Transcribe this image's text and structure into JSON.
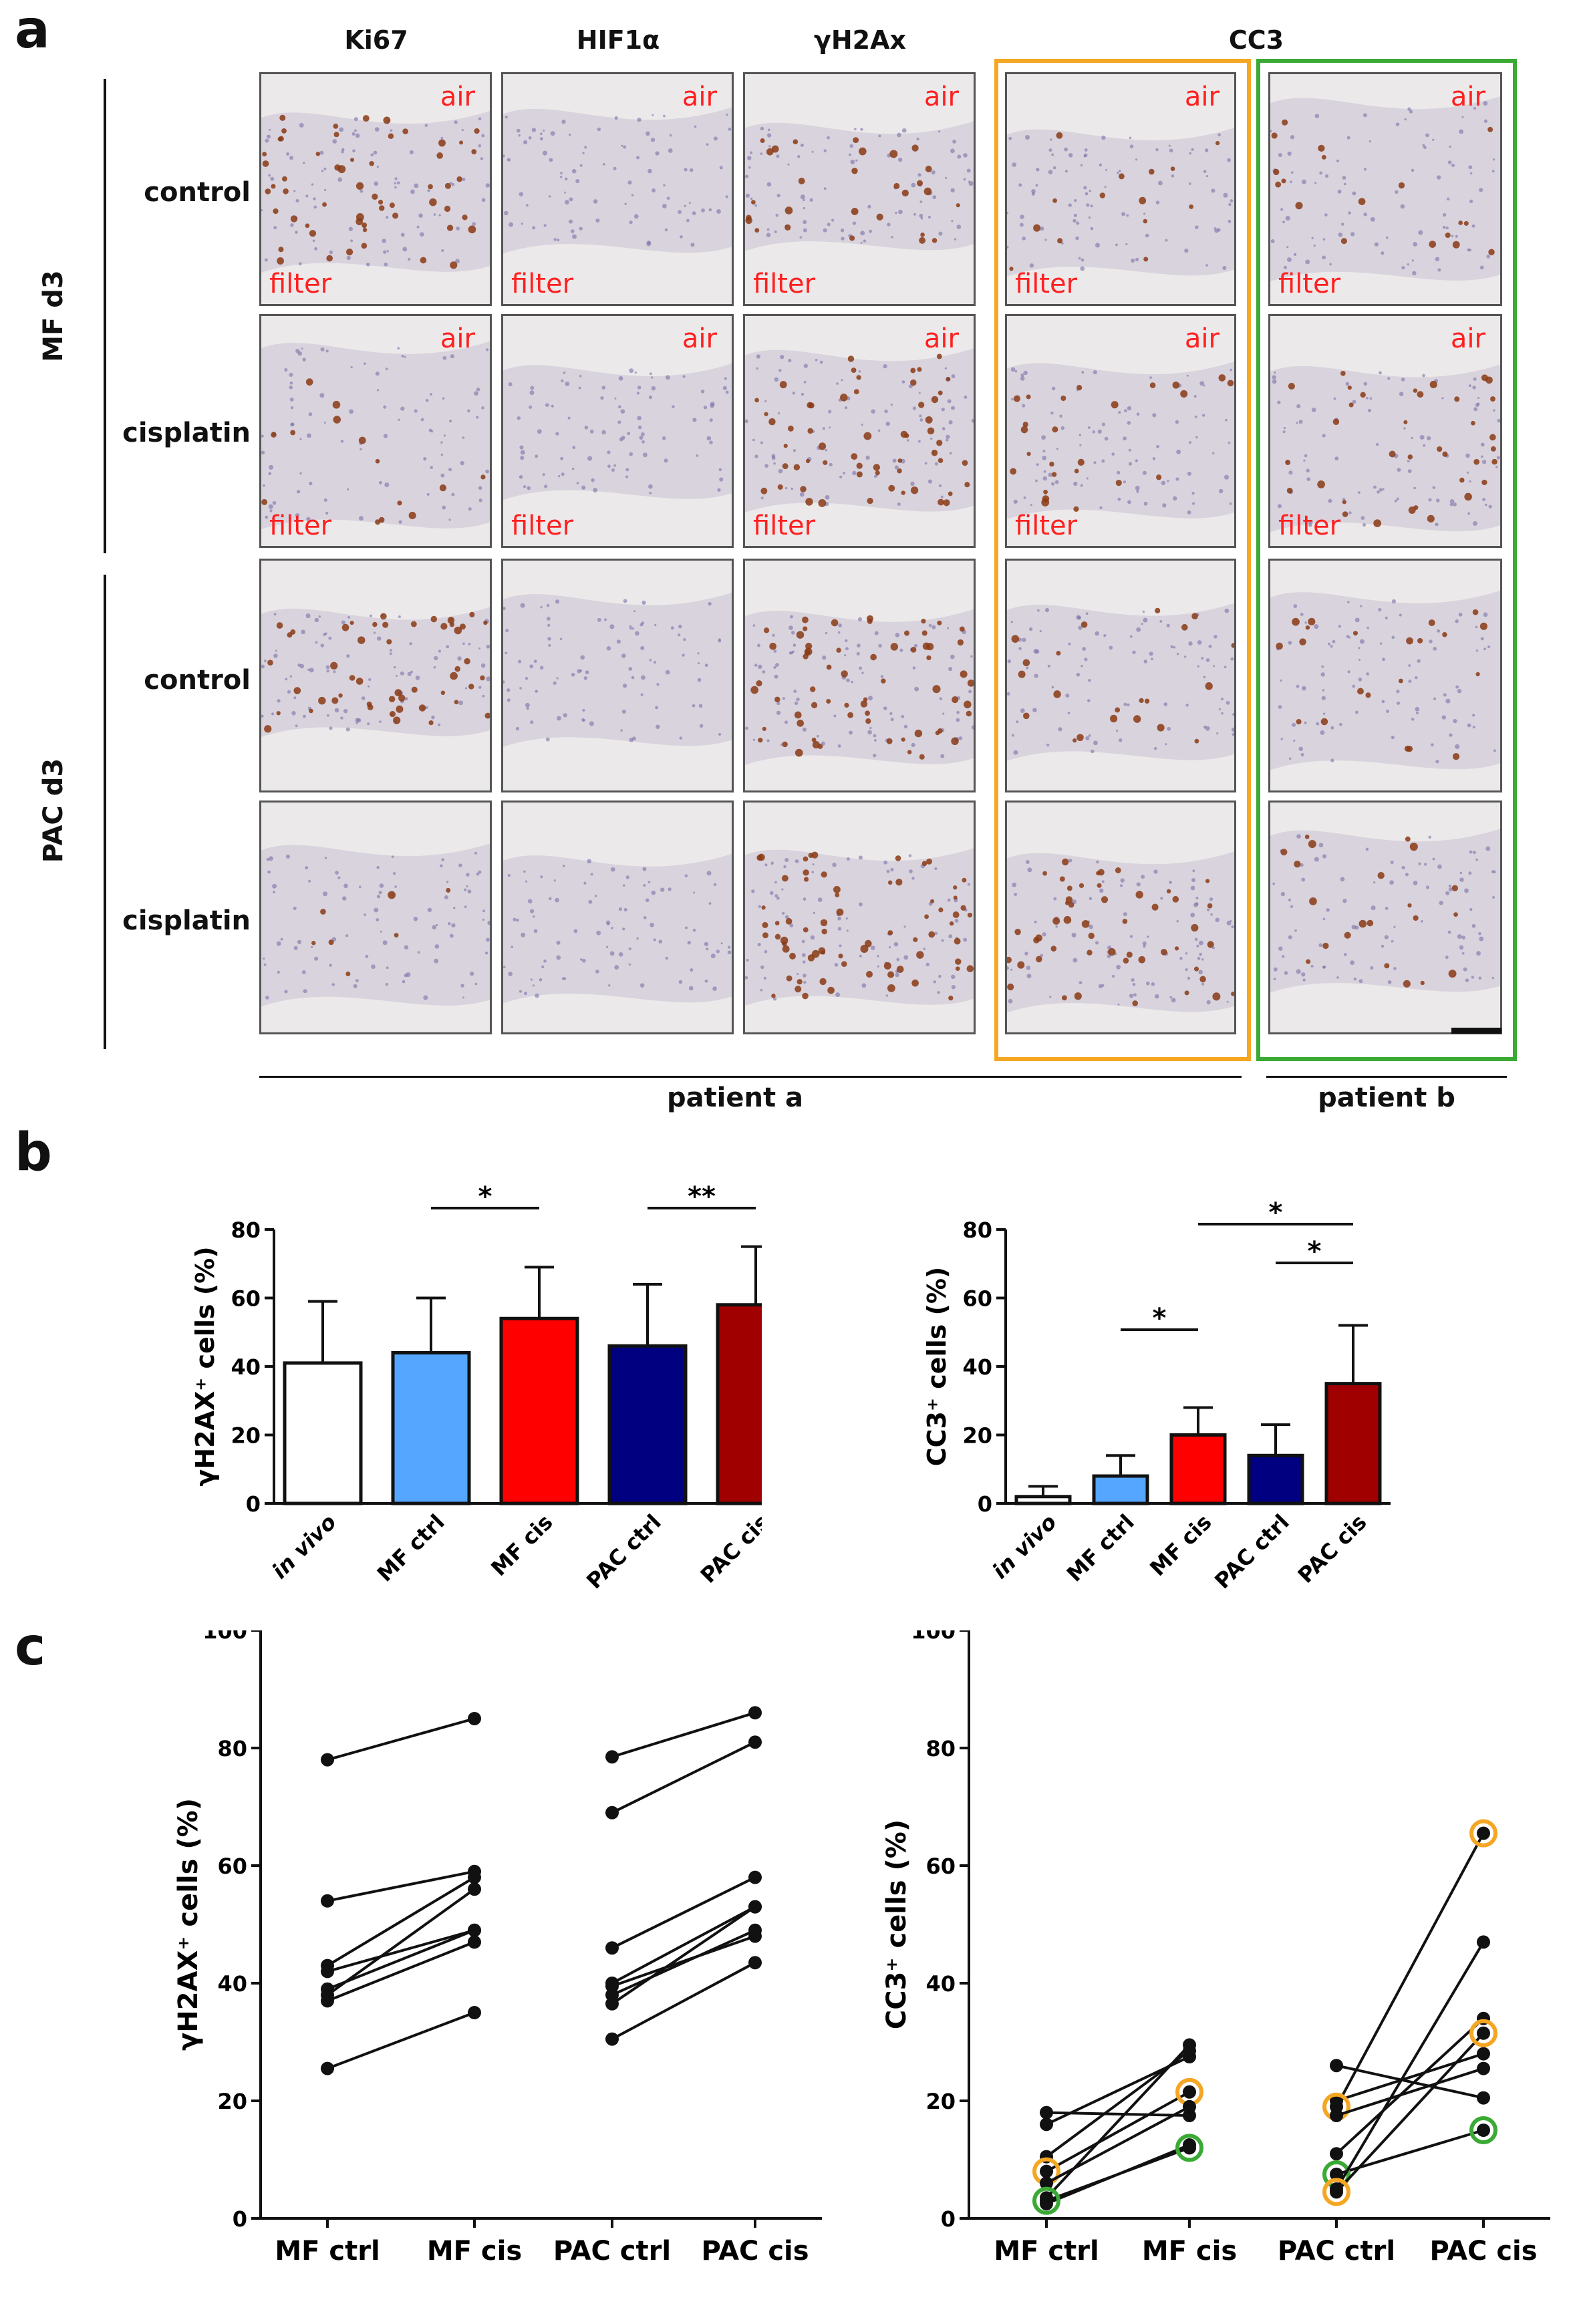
{
  "panel_labels": {
    "a": "a",
    "b": "b",
    "c": "c"
  },
  "panel_a": {
    "columns": [
      "Ki67",
      "HIF1α",
      "γH2Ax",
      "CC3"
    ],
    "row_groups": [
      "MF d3",
      "PAC d3"
    ],
    "rows": [
      "control",
      "cisplatin",
      "control",
      "cisplatin"
    ],
    "patients": [
      "patient a",
      "patient b"
    ],
    "tile_labels": {
      "air": "air",
      "filter": "filter"
    },
    "colors": {
      "orange_box": "#f5a623",
      "green_box": "#3aaa35",
      "stain": "#8a3a14",
      "nuclei": "#7a72a8"
    }
  },
  "chart_data": [
    {
      "type": "bar",
      "panel": "b-left",
      "categories": [
        "in vivo",
        "MF ctrl",
        "MF cis",
        "PAC ctrl",
        "PAC cis"
      ],
      "values": [
        41,
        44,
        54,
        46,
        58
      ],
      "errors": [
        18,
        16,
        15,
        18,
        17
      ],
      "colors": [
        "#ffffff",
        "#55a6ff",
        "#ff0000",
        "#000080",
        "#a00000"
      ],
      "ylabel": "γH2AX⁺ cells (%)",
      "ylim": [
        0,
        80
      ],
      "yticks": [
        0,
        20,
        40,
        60,
        80
      ],
      "significance": [
        {
          "from": "MF ctrl",
          "to": "MF cis",
          "label": "*"
        },
        {
          "from": "PAC ctrl",
          "to": "PAC cis",
          "label": "**"
        }
      ]
    },
    {
      "type": "bar",
      "panel": "b-right",
      "categories": [
        "in vivo",
        "MF ctrl",
        "MF cis",
        "PAC ctrl",
        "PAC cis"
      ],
      "values": [
        2,
        8,
        20,
        14,
        35
      ],
      "errors": [
        3,
        6,
        8,
        9,
        17
      ],
      "colors": [
        "#ffffff",
        "#55a6ff",
        "#ff0000",
        "#000080",
        "#a00000"
      ],
      "ylabel": "CC3⁺ cells (%)",
      "ylim": [
        0,
        80
      ],
      "yticks": [
        0,
        20,
        40,
        60,
        80
      ],
      "significance": [
        {
          "from": "MF ctrl",
          "to": "MF cis",
          "label": "*"
        },
        {
          "from": "PAC ctrl",
          "to": "PAC cis",
          "label": "*"
        },
        {
          "from": "MF cis",
          "to": "PAC cis",
          "label": "*"
        }
      ]
    },
    {
      "type": "scatter",
      "panel": "c-left",
      "categories": [
        "MF ctrl",
        "MF cis",
        "PAC ctrl",
        "PAC cis"
      ],
      "ylabel": "γH2AX⁺ cells (%)",
      "ylim": [
        0,
        100
      ],
      "yticks": [
        0,
        20,
        40,
        60,
        80,
        100
      ],
      "pairs_mf": [
        [
          78,
          85
        ],
        [
          54,
          59
        ],
        [
          43,
          58
        ],
        [
          42,
          49
        ],
        [
          39,
          49
        ],
        [
          38,
          56
        ],
        [
          37,
          47
        ],
        [
          25.5,
          35
        ]
      ],
      "pairs_pac": [
        [
          78.5,
          86
        ],
        [
          69,
          81
        ],
        [
          46,
          58
        ],
        [
          40,
          53
        ],
        [
          39.5,
          48
        ],
        [
          38,
          49
        ],
        [
          36.5,
          53
        ],
        [
          30.5,
          43.5
        ]
      ],
      "highlights": []
    },
    {
      "type": "scatter",
      "panel": "c-right",
      "categories": [
        "MF ctrl",
        "MF cis",
        "PAC ctrl",
        "PAC cis"
      ],
      "ylabel": "CC3⁺ cells (%)",
      "ylim": [
        0,
        100
      ],
      "yticks": [
        0,
        20,
        40,
        60,
        80,
        100
      ],
      "pairs_mf": [
        [
          18,
          17.5
        ],
        [
          16,
          27.5
        ],
        [
          10.5,
          28.5
        ],
        [
          8,
          21.5
        ],
        [
          6,
          19
        ],
        [
          3.5,
          29.5
        ],
        [
          2.5,
          12.5
        ],
        [
          3,
          12
        ]
      ],
      "pairs_pac": [
        [
          26,
          20.5
        ],
        [
          20,
          28
        ],
        [
          19,
          65.5
        ],
        [
          17.5,
          25.5
        ],
        [
          11,
          34
        ],
        [
          7.5,
          15
        ],
        [
          5,
          47
        ],
        [
          4.5,
          31.5
        ]
      ],
      "highlights": [
        {
          "group": "mf",
          "index": 3,
          "color": "#f5a623"
        },
        {
          "group": "mf",
          "index": 7,
          "color": "#3aaa35"
        },
        {
          "group": "pac",
          "index": 2,
          "color": "#f5a623"
        },
        {
          "group": "pac",
          "index": 7,
          "color": "#f5a623"
        },
        {
          "group": "pac",
          "index": 5,
          "color": "#3aaa35"
        }
      ]
    }
  ]
}
